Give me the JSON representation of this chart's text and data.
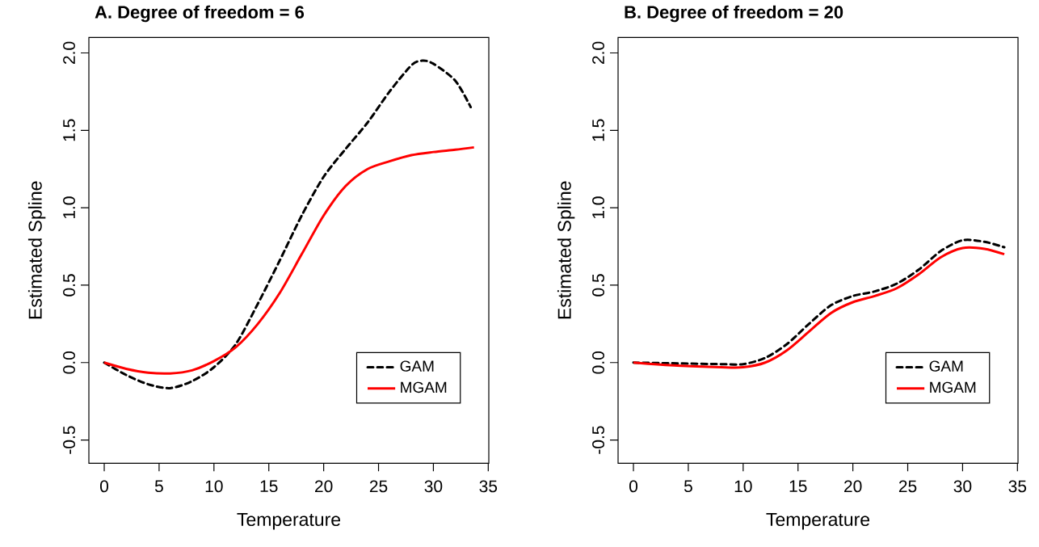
{
  "chart_data": [
    {
      "type": "line",
      "title": "A. Degree of freedom = 6",
      "xlabel": "Temperature",
      "ylabel": "Estimated Spline",
      "xlim": [
        -1.4,
        35.05
      ],
      "ylim": [
        -0.65,
        2.1
      ],
      "xticks": [
        0,
        5,
        10,
        15,
        20,
        25,
        30,
        35
      ],
      "yticks": [
        {
          "value": -0.5,
          "label": "-0.5"
        },
        {
          "value": 0,
          "label": "0.0"
        },
        {
          "value": 0.5,
          "label": "0.5"
        },
        {
          "value": 1,
          "label": "1.0"
        },
        {
          "value": 1.5,
          "label": "1.5"
        },
        {
          "value": 2,
          "label": "2.0"
        }
      ],
      "legend": "bottom right",
      "grid": false,
      "series": [
        {
          "name": "GAM",
          "color": "#000000",
          "line_style": "dashed",
          "x": [
            0,
            2,
            4,
            6,
            8,
            10,
            12,
            14,
            16,
            18,
            20,
            22,
            24,
            26,
            28,
            29,
            30,
            32,
            33.4
          ],
          "values": [
            0,
            -0.08,
            -0.14,
            -0.165,
            -0.12,
            -0.03,
            0.12,
            0.38,
            0.66,
            0.95,
            1.2,
            1.38,
            1.55,
            1.75,
            1.92,
            1.95,
            1.93,
            1.82,
            1.65
          ]
        },
        {
          "name": "MGAM",
          "color": "#ff0000",
          "line_style": "solid",
          "x": [
            0,
            2,
            4,
            6,
            8,
            10,
            12,
            14,
            16,
            18,
            20,
            22,
            24,
            26,
            28,
            30,
            32,
            33.7
          ],
          "values": [
            0,
            -0.04,
            -0.065,
            -0.07,
            -0.05,
            0.01,
            0.1,
            0.25,
            0.45,
            0.7,
            0.95,
            1.14,
            1.25,
            1.3,
            1.34,
            1.36,
            1.375,
            1.39
          ]
        }
      ]
    },
    {
      "type": "line",
      "title": "B. Degree of freedom = 20",
      "xlabel": "Temperature",
      "ylabel": "Estimated Spline",
      "xlim": [
        -1.4,
        35.05
      ],
      "ylim": [
        -0.65,
        2.1
      ],
      "xticks": [
        0,
        5,
        10,
        15,
        20,
        25,
        30,
        35
      ],
      "yticks": [
        {
          "value": -0.5,
          "label": "-0.5"
        },
        {
          "value": 0,
          "label": "0.0"
        },
        {
          "value": 0.5,
          "label": "0.5"
        },
        {
          "value": 1,
          "label": "1.0"
        },
        {
          "value": 1.5,
          "label": "1.5"
        },
        {
          "value": 2,
          "label": "2.0"
        }
      ],
      "legend": "bottom right",
      "grid": false,
      "series": [
        {
          "name": "GAM",
          "color": "#000000",
          "line_style": "dashed",
          "x": [
            0,
            4,
            8,
            10,
            12,
            14,
            16,
            18,
            20,
            22,
            24,
            26,
            28,
            30,
            32,
            33.8
          ],
          "values": [
            0,
            -0.005,
            -0.01,
            -0.01,
            0.03,
            0.12,
            0.25,
            0.37,
            0.43,
            0.46,
            0.51,
            0.6,
            0.72,
            0.79,
            0.78,
            0.745
          ]
        },
        {
          "name": "MGAM",
          "color": "#ff0000",
          "line_style": "solid",
          "x": [
            0,
            4,
            8,
            10,
            12,
            14,
            16,
            18,
            20,
            22,
            24,
            26,
            28,
            30,
            32,
            33.8
          ],
          "values": [
            0,
            -0.02,
            -0.03,
            -0.03,
            0.0,
            0.08,
            0.2,
            0.32,
            0.39,
            0.43,
            0.48,
            0.57,
            0.68,
            0.74,
            0.735,
            0.7
          ]
        }
      ]
    }
  ]
}
